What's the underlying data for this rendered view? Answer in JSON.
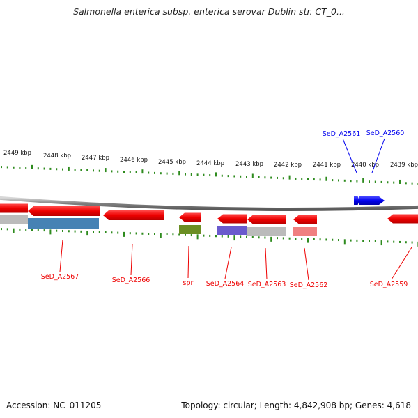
{
  "title": "Salmonella enterica subsp. enterica serovar Dublin str. CT_0...",
  "footer": {
    "accession": "Accession: NC_011205",
    "summary": "Topology: circular; Length: 4,842,908 bp; Genes: 4,618"
  },
  "scale": {
    "unit": "kbp",
    "tick_labels": [
      "2449 kbp",
      "2448 kbp",
      "2447 kbp",
      "2446 kbp",
      "2445 kbp",
      "2444 kbp",
      "2443 kbp",
      "2442 kbp",
      "2441 kbp",
      "2440 kbp",
      "2439 kbp"
    ]
  },
  "colors": {
    "forward_gene": "#0000ee",
    "reverse_gene": "#ee0000",
    "tick": "#2e8b1e",
    "backbone": "#888888"
  },
  "genes": [
    {
      "id": "SeD_A2567",
      "label": "SeD_A2567",
      "strand": "reverse",
      "cog_color": "#4682b4"
    },
    {
      "id": "SeD_A2566",
      "label": "SeD_A2566",
      "strand": "reverse",
      "cog_color": ""
    },
    {
      "id": "spr",
      "label": "spr",
      "strand": "reverse",
      "cog_color": "#6b8e23"
    },
    {
      "id": "SeD_A2564",
      "label": "SeD_A2564",
      "strand": "reverse",
      "cog_color": "#6a5acd"
    },
    {
      "id": "SeD_A2563",
      "label": "SeD_A2563",
      "strand": "reverse",
      "cog_color": "#bbbbbb"
    },
    {
      "id": "SeD_A2562",
      "label": "SeD_A2562",
      "strand": "reverse",
      "cog_color": "#f08080"
    },
    {
      "id": "SeD_A2561",
      "label": "SeD_A2561",
      "strand": "forward",
      "cog_color": ""
    },
    {
      "id": "SeD_A2560",
      "label": "SeD_A2560",
      "strand": "forward",
      "cog_color": ""
    },
    {
      "id": "SeD_A2559",
      "label": "SeD_A2559",
      "strand": "reverse",
      "cog_color": ""
    },
    {
      "id": "SeD_A2568",
      "label": "",
      "strand": "reverse",
      "cog_color": "#bbbbbb"
    }
  ]
}
